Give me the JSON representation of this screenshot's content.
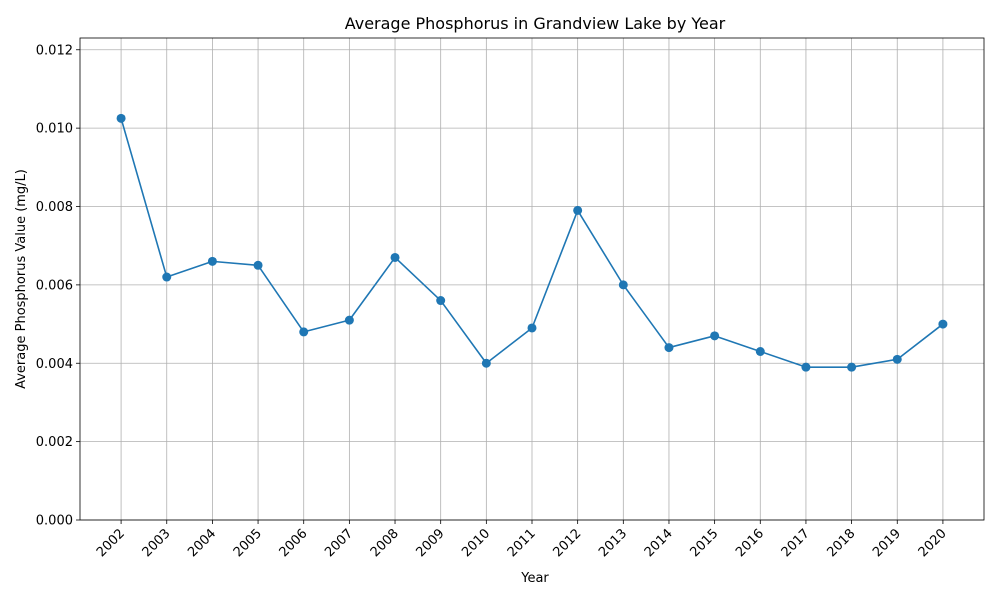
{
  "chart_data": {
    "type": "line",
    "title": "Average Phosphorus in Grandview Lake by Year",
    "xlabel": "Year",
    "ylabel": "Average Phosphorus Value (mg/L)",
    "categories": [
      "2002",
      "2003",
      "2004",
      "2005",
      "2006",
      "2007",
      "2008",
      "2009",
      "2010",
      "2011",
      "2012",
      "2013",
      "2014",
      "2015",
      "2016",
      "2017",
      "2018",
      "2019",
      "2020"
    ],
    "series": [
      {
        "values": [
          0.01025,
          0.0062,
          0.0066,
          0.0065,
          0.0048,
          0.0051,
          0.0067,
          0.0056,
          0.004,
          0.0049,
          0.0079,
          0.006,
          0.0044,
          0.0047,
          0.0043,
          0.0039,
          0.0039,
          0.0041,
          0.005
        ]
      }
    ],
    "ylim": [
      0,
      0.0123
    ],
    "yticks": [
      "0.000",
      "0.002",
      "0.004",
      "0.006",
      "0.008",
      "0.010",
      "0.012"
    ],
    "grid": true,
    "markers": "circle",
    "line_color": "#1f77b4"
  }
}
